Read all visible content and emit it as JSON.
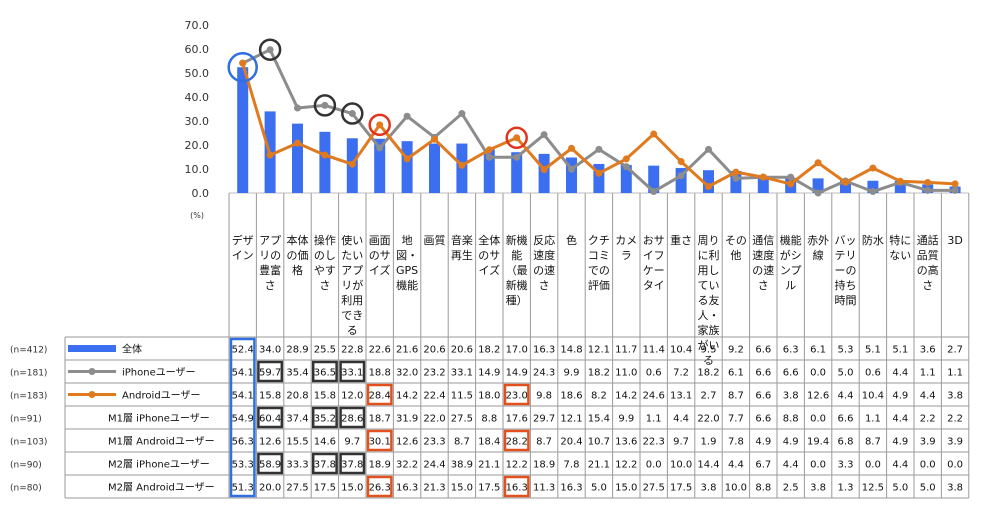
{
  "chart_data": {
    "type": "bar",
    "y_unit": "(%)",
    "ylim": [
      0,
      70
    ],
    "yticks": [
      "0.0",
      "10.0",
      "20.0",
      "30.0",
      "40.0",
      "50.0",
      "60.0",
      "70.0"
    ],
    "categories": [
      [
        "デザ",
        "イン"
      ],
      [
        "アプ",
        "リの",
        "豊富",
        "さ"
      ],
      [
        "本体",
        "の価",
        "格"
      ],
      [
        "操作",
        "のし",
        "やす",
        "さ"
      ],
      [
        "使い",
        "たい",
        "アプ",
        "リが",
        "利用",
        "でき",
        "る"
      ],
      [
        "画面",
        "のサ",
        "イズ"
      ],
      [
        "地",
        "図・",
        "GPS",
        "機能"
      ],
      [
        "画質"
      ],
      [
        "音楽",
        "再生"
      ],
      [
        "全体",
        "のサ",
        "イズ"
      ],
      [
        "新機",
        "能",
        "（最",
        "新機",
        "種）"
      ],
      [
        "反応",
        "速度",
        "の速",
        "さ"
      ],
      [
        "色"
      ],
      [
        "クチ",
        "コミ",
        "での",
        "評価"
      ],
      [
        "カメ",
        "ラ"
      ],
      [
        "おサ",
        "イフ",
        "ケー",
        "タイ"
      ],
      [
        "重さ"
      ],
      [
        "周り",
        "に利",
        "用し",
        "てい",
        "る友",
        "人・",
        "家族",
        "がい",
        "る"
      ],
      [
        "その",
        "他"
      ],
      [
        "通信",
        "速度",
        "の速",
        "さ"
      ],
      [
        "機能",
        "がシ",
        "ンプ",
        "ル"
      ],
      [
        "赤外",
        "線"
      ],
      [
        "バッ",
        "テリ",
        "ーの",
        "持ち",
        "時間"
      ],
      [
        "防水"
      ],
      [
        "特に",
        "ない"
      ],
      [
        "通話",
        "品質",
        "の高",
        "さ"
      ],
      [
        "3D"
      ]
    ],
    "rows": [
      {
        "n": "(n=412)",
        "label": "全体",
        "legend": "bar",
        "color": "#3c6ff0",
        "values": [
          "52.4",
          "34.0",
          "28.9",
          "25.5",
          "22.8",
          "22.6",
          "21.6",
          "20.6",
          "20.6",
          "18.2",
          "17.0",
          "16.3",
          "14.8",
          "12.1",
          "11.7",
          "11.4",
          "10.4",
          "9.5",
          "9.2",
          "6.6",
          "6.3",
          "6.1",
          "5.3",
          "5.1",
          "5.1",
          "3.6",
          "2.7"
        ]
      },
      {
        "n": "(n=181)",
        "label": "iPhoneユーザー",
        "legend": "line",
        "color": "#8c8c8c",
        "values": [
          "54.1",
          "59.7",
          "35.4",
          "36.5",
          "33.1",
          "18.8",
          "32.0",
          "23.2",
          "33.1",
          "14.9",
          "14.9",
          "24.3",
          "9.9",
          "18.2",
          "11.0",
          "0.6",
          "7.2",
          "18.2",
          "6.1",
          "6.6",
          "6.6",
          "0.0",
          "5.0",
          "0.6",
          "4.4",
          "1.1",
          "1.1"
        ]
      },
      {
        "n": "(n=183)",
        "label": "Androidユーザー",
        "legend": "line",
        "color": "#e07a1f",
        "values": [
          "54.1",
          "15.8",
          "20.8",
          "15.8",
          "12.0",
          "28.4",
          "14.2",
          "22.4",
          "11.5",
          "18.0",
          "23.0",
          "9.8",
          "18.6",
          "8.2",
          "14.2",
          "24.6",
          "13.1",
          "2.7",
          "8.7",
          "6.6",
          "3.8",
          "12.6",
          "4.4",
          "10.4",
          "4.9",
          "4.4",
          "3.8"
        ]
      },
      {
        "n": "(n=91)",
        "label": "M1層 iPhoneユーザー",
        "legend": "none",
        "color": "",
        "values": [
          "54.9",
          "60.4",
          "37.4",
          "35.2",
          "28.6",
          "18.7",
          "31.9",
          "22.0",
          "27.5",
          "8.8",
          "17.6",
          "29.7",
          "12.1",
          "15.4",
          "9.9",
          "1.1",
          "4.4",
          "22.0",
          "7.7",
          "6.6",
          "8.8",
          "0.0",
          "6.6",
          "1.1",
          "4.4",
          "2.2",
          "2.2"
        ]
      },
      {
        "n": "(n=103)",
        "label": "M1層 Androidユーザー",
        "legend": "none",
        "color": "",
        "values": [
          "56.3",
          "12.6",
          "15.5",
          "14.6",
          "9.7",
          "30.1",
          "12.6",
          "23.3",
          "8.7",
          "18.4",
          "28.2",
          "8.7",
          "20.4",
          "10.7",
          "13.6",
          "22.3",
          "9.7",
          "1.9",
          "7.8",
          "4.9",
          "4.9",
          "19.4",
          "6.8",
          "8.7",
          "4.9",
          "3.9",
          "3.9"
        ]
      },
      {
        "n": "(n=90)",
        "label": "M2層 iPhoneユーザー",
        "legend": "none",
        "color": "",
        "values": [
          "53.3",
          "58.9",
          "33.3",
          "37.8",
          "37.8",
          "18.9",
          "32.2",
          "24.4",
          "38.9",
          "21.1",
          "12.2",
          "18.9",
          "7.8",
          "21.1",
          "12.2",
          "0.0",
          "10.0",
          "14.4",
          "4.4",
          "6.7",
          "4.4",
          "0.0",
          "3.3",
          "0.0",
          "4.4",
          "0.0",
          "0.0"
        ]
      },
      {
        "n": "(n=80)",
        "label": "M2層 Androidユーザー",
        "legend": "none",
        "color": "",
        "values": [
          "51.3",
          "20.0",
          "27.5",
          "17.5",
          "15.0",
          "26.3",
          "16.3",
          "21.3",
          "15.0",
          "17.5",
          "16.3",
          "11.3",
          "16.3",
          "5.0",
          "15.0",
          "27.5",
          "17.5",
          "3.8",
          "10.0",
          "8.8",
          "2.5",
          "3.8",
          "1.3",
          "12.5",
          "5.0",
          "5.0",
          "3.8"
        ]
      }
    ],
    "highlight_colors": {
      "blue": "#2f6fe0",
      "black": "#333333",
      "red": "#e0351c",
      "orange": "#e2501e"
    },
    "circles": [
      {
        "series": 0,
        "category": 0,
        "color": "blue"
      },
      {
        "series": 1,
        "category": 1,
        "color": "black"
      },
      {
        "series": 1,
        "category": 3,
        "color": "black"
      },
      {
        "series": 1,
        "category": 4,
        "color": "black"
      },
      {
        "series": 2,
        "category": 5,
        "color": "red"
      },
      {
        "series": 2,
        "category": 10,
        "color": "red"
      }
    ],
    "boxes": [
      {
        "rows": [
          0,
          6
        ],
        "category": 0,
        "color": "blue"
      },
      {
        "rows": [
          1,
          1
        ],
        "category": 1,
        "color": "black"
      },
      {
        "rows": [
          1,
          1
        ],
        "category": 3,
        "color": "black"
      },
      {
        "rows": [
          1,
          1
        ],
        "category": 4,
        "color": "black"
      },
      {
        "rows": [
          3,
          3
        ],
        "category": 1,
        "color": "black"
      },
      {
        "rows": [
          3,
          3
        ],
        "category": 3,
        "color": "black"
      },
      {
        "rows": [
          3,
          3
        ],
        "category": 4,
        "color": "black"
      },
      {
        "rows": [
          5,
          5
        ],
        "category": 1,
        "color": "black"
      },
      {
        "rows": [
          5,
          5
        ],
        "category": 3,
        "color": "black"
      },
      {
        "rows": [
          5,
          5
        ],
        "category": 4,
        "color": "black"
      },
      {
        "rows": [
          2,
          2
        ],
        "category": 5,
        "color": "orange"
      },
      {
        "rows": [
          4,
          4
        ],
        "category": 5,
        "color": "orange"
      },
      {
        "rows": [
          6,
          6
        ],
        "category": 5,
        "color": "orange"
      },
      {
        "rows": [
          2,
          2
        ],
        "category": 10,
        "color": "orange"
      },
      {
        "rows": [
          4,
          4
        ],
        "category": 10,
        "color": "orange"
      },
      {
        "rows": [
          6,
          6
        ],
        "category": 10,
        "color": "orange"
      }
    ]
  }
}
